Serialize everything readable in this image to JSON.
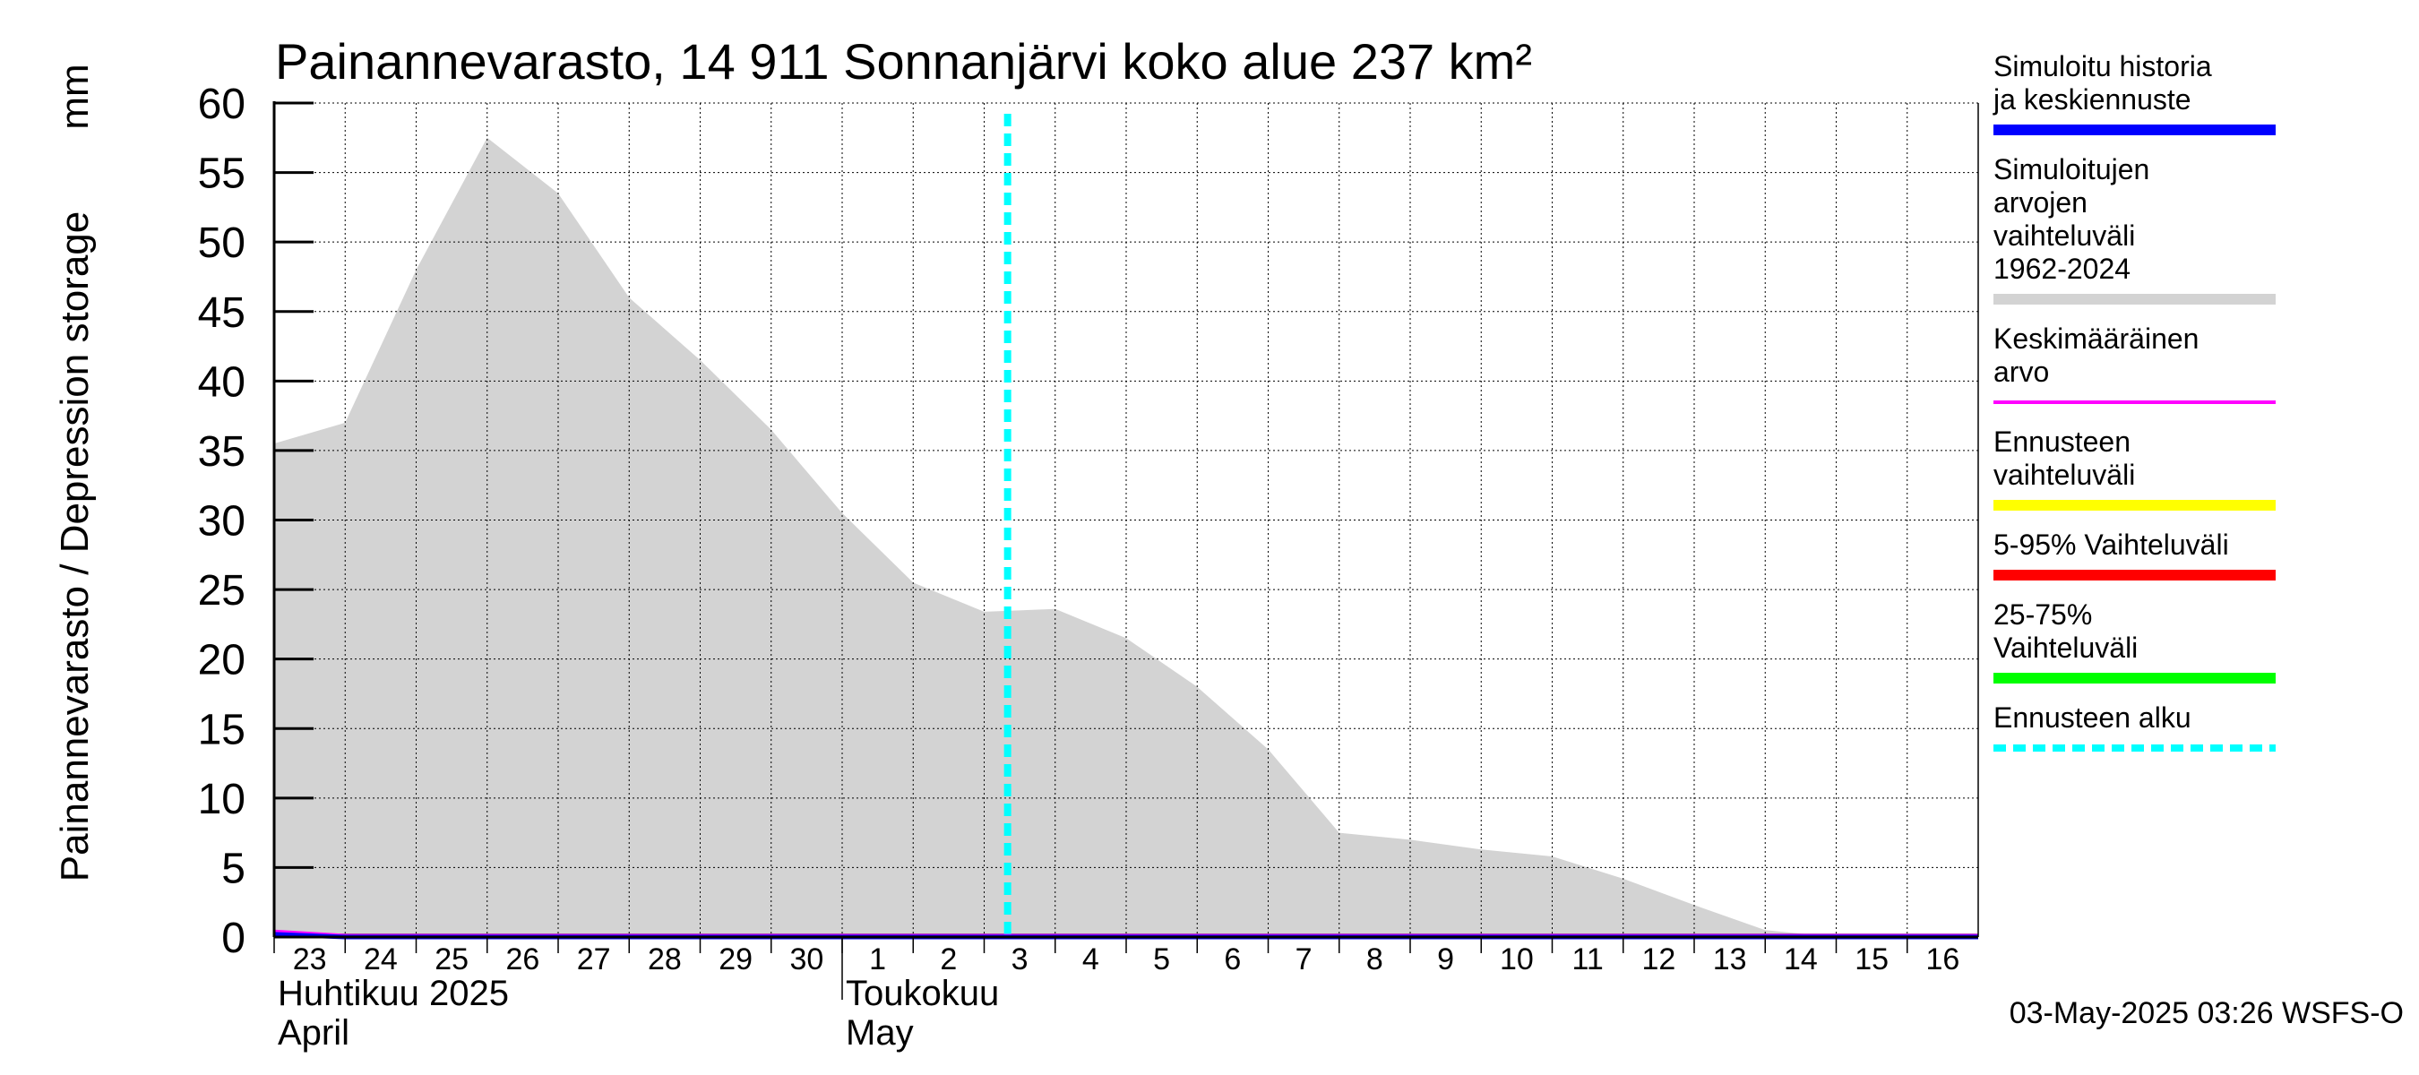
{
  "chart_data": {
    "type": "area",
    "title": "Painannevarasto, 14 911 Sonnanjärvi koko alue 237 km²",
    "ylabel": "Painannevarasto / Depression storage",
    "yunit": "mm",
    "ylim": [
      0,
      60
    ],
    "yticks": [
      0,
      5,
      10,
      15,
      20,
      25,
      30,
      35,
      40,
      45,
      50,
      55,
      60
    ],
    "xlim": [
      "2025-04-23",
      "2025-05-17"
    ],
    "xtick_labels": [
      "23",
      "24",
      "25",
      "26",
      "27",
      "28",
      "29",
      "30",
      "1",
      "2",
      "3",
      "4",
      "5",
      "6",
      "7",
      "8",
      "9",
      "10",
      "11",
      "12",
      "13",
      "14",
      "15",
      "16"
    ],
    "month_labels": [
      {
        "fi": "Huhtikuu  2025",
        "en": "April"
      },
      {
        "fi": "Toukokuu",
        "en": "May"
      }
    ],
    "grid": true,
    "legend_placement": "right",
    "forecast_start": "2025-05-03",
    "series": [
      {
        "name": "Simuloitujen arvojen vaihteluväli 1962-2024",
        "kind": "band",
        "color": "#d3d3d3",
        "x": [
          "2025-04-23",
          "2025-04-24",
          "2025-04-25",
          "2025-04-26",
          "2025-04-27",
          "2025-04-28",
          "2025-04-29",
          "2025-04-30",
          "2025-05-01",
          "2025-05-02",
          "2025-05-03",
          "2025-05-04",
          "2025-05-05",
          "2025-05-06",
          "2025-05-07",
          "2025-05-08",
          "2025-05-09",
          "2025-05-10",
          "2025-05-11",
          "2025-05-12",
          "2025-05-13",
          "2025-05-14",
          "2025-05-15",
          "2025-05-16",
          "2025-05-17"
        ],
        "upper": [
          35.5,
          37.0,
          48.0,
          57.5,
          53.5,
          46.0,
          41.5,
          36.5,
          30.5,
          25.5,
          23.4,
          23.6,
          21.5,
          18.0,
          13.5,
          7.5,
          7.0,
          6.3,
          5.8,
          4.2,
          2.3,
          0.5,
          0,
          0,
          0
        ],
        "lower": [
          0,
          0,
          0,
          0,
          0,
          0,
          0,
          0,
          0,
          0,
          0,
          0,
          0,
          0,
          0,
          0,
          0,
          0,
          0,
          0,
          0,
          0,
          0,
          0,
          0
        ]
      },
      {
        "name": "Keskimääräinen arvo",
        "kind": "line",
        "color": "#ff00ff",
        "x": [
          "2025-04-23",
          "2025-04-24",
          "2025-05-17"
        ],
        "y": [
          0.4,
          0.1,
          0.1
        ]
      },
      {
        "name": "Simuloitu historia ja keskiennuste",
        "kind": "line",
        "color": "#0000ff",
        "x": [
          "2025-04-23",
          "2025-04-24",
          "2025-05-17"
        ],
        "y": [
          0.2,
          0.0,
          0.0
        ]
      }
    ],
    "legend": [
      {
        "label": "Simuloitu historia ja keskiennuste",
        "color": "#0000ff",
        "style": "solid"
      },
      {
        "label": "Simuloitujen arvojen vaihteluväli 1962-2024",
        "color": "#d3d3d3",
        "style": "solid"
      },
      {
        "label": "Keskimääräinen arvo",
        "color": "#ff00ff",
        "style": "thin"
      },
      {
        "label": "Ennusteen vaihteluväli",
        "color": "#ffff00",
        "style": "solid"
      },
      {
        "label": "5-95% Vaihteluväli",
        "color": "#ff0000",
        "style": "solid"
      },
      {
        "label": "25-75% Vaihteluväli",
        "color": "#00ff00",
        "style": "solid"
      },
      {
        "label": "Ennusteen alku",
        "color": "#00ffff",
        "style": "dashed"
      }
    ],
    "footer": "03-May-2025 03:26 WSFS-O"
  }
}
